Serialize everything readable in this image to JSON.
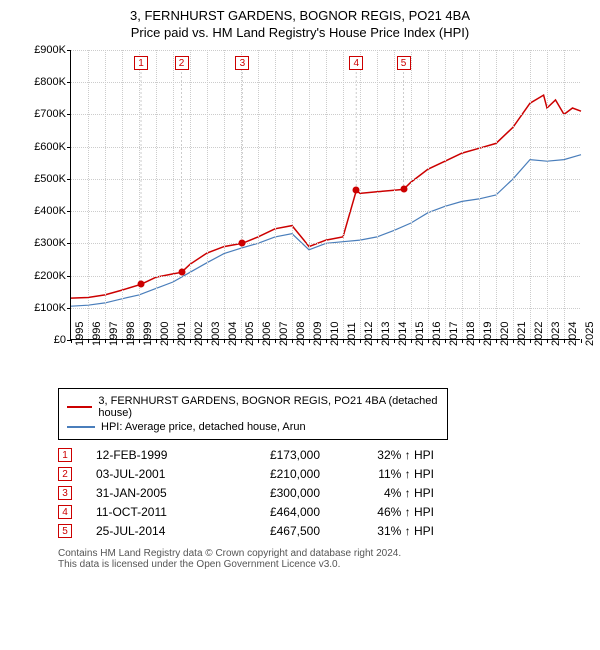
{
  "title": "3, FERNHURST GARDENS, BOGNOR REGIS, PO21 4BA",
  "subtitle": "Price paid vs. HM Land Registry's House Price Index (HPI)",
  "chart": {
    "type": "line",
    "background_color": "#ffffff",
    "grid_color": "#cccccc",
    "axis_color": "#000000",
    "text_color": "#000000",
    "label_fontsize": 11,
    "title_fontsize": 13,
    "y": {
      "min": 0,
      "max": 900000,
      "step": 100000,
      "labels": [
        "£0",
        "£100K",
        "£200K",
        "£300K",
        "£400K",
        "£500K",
        "£600K",
        "£700K",
        "£800K",
        "£900K"
      ]
    },
    "x": {
      "min": 1995,
      "max": 2025,
      "step": 1,
      "labels": [
        "1995",
        "1996",
        "1997",
        "1998",
        "1999",
        "2000",
        "2001",
        "2002",
        "2003",
        "2004",
        "2005",
        "2006",
        "2007",
        "2008",
        "2009",
        "2010",
        "2011",
        "2012",
        "2013",
        "2014",
        "2015",
        "2016",
        "2017",
        "2018",
        "2019",
        "2020",
        "2021",
        "2022",
        "2023",
        "2024",
        "2025"
      ]
    },
    "series_red": {
      "name": "3, FERNHURST GARDENS, BOGNOR REGIS, PO21 4BA (detached house)",
      "color": "#cc0000",
      "line_width": 1.5,
      "points": [
        [
          1995,
          130000
        ],
        [
          1996,
          132000
        ],
        [
          1997,
          140000
        ],
        [
          1998,
          155000
        ],
        [
          1999.12,
          173000
        ],
        [
          2000,
          195000
        ],
        [
          2001,
          205000
        ],
        [
          2001.5,
          210000
        ],
        [
          2002,
          235000
        ],
        [
          2003,
          270000
        ],
        [
          2004,
          290000
        ],
        [
          2005.08,
          300000
        ],
        [
          2006,
          320000
        ],
        [
          2007,
          345000
        ],
        [
          2008,
          355000
        ],
        [
          2008.7,
          310000
        ],
        [
          2009,
          290000
        ],
        [
          2010,
          310000
        ],
        [
          2011,
          320000
        ],
        [
          2011.78,
          464000
        ],
        [
          2012,
          455000
        ],
        [
          2013,
          460000
        ],
        [
          2014,
          465000
        ],
        [
          2014.56,
          467500
        ],
        [
          2015,
          490000
        ],
        [
          2016,
          530000
        ],
        [
          2017,
          555000
        ],
        [
          2018,
          580000
        ],
        [
          2019,
          595000
        ],
        [
          2020,
          610000
        ],
        [
          2021,
          660000
        ],
        [
          2022,
          735000
        ],
        [
          2022.8,
          760000
        ],
        [
          2023,
          720000
        ],
        [
          2023.5,
          745000
        ],
        [
          2024,
          700000
        ],
        [
          2024.5,
          720000
        ],
        [
          2025,
          710000
        ]
      ]
    },
    "series_blue": {
      "name": "HPI: Average price, detached house, Arun",
      "color": "#4a7ebb",
      "line_width": 1.2,
      "points": [
        [
          1995,
          105000
        ],
        [
          1996,
          108000
        ],
        [
          1997,
          115000
        ],
        [
          1998,
          128000
        ],
        [
          1999,
          140000
        ],
        [
          2000,
          160000
        ],
        [
          2001,
          180000
        ],
        [
          2002,
          210000
        ],
        [
          2003,
          240000
        ],
        [
          2004,
          268000
        ],
        [
          2005,
          285000
        ],
        [
          2006,
          300000
        ],
        [
          2007,
          320000
        ],
        [
          2008,
          330000
        ],
        [
          2009,
          280000
        ],
        [
          2010,
          300000
        ],
        [
          2011,
          305000
        ],
        [
          2012,
          310000
        ],
        [
          2013,
          320000
        ],
        [
          2014,
          340000
        ],
        [
          2015,
          363000
        ],
        [
          2016,
          395000
        ],
        [
          2017,
          415000
        ],
        [
          2018,
          430000
        ],
        [
          2019,
          438000
        ],
        [
          2020,
          450000
        ],
        [
          2021,
          500000
        ],
        [
          2022,
          560000
        ],
        [
          2023,
          555000
        ],
        [
          2024,
          560000
        ],
        [
          2025,
          575000
        ]
      ]
    },
    "sale_markers": [
      {
        "n": "1",
        "year": 1999.12,
        "price": 173000
      },
      {
        "n": "2",
        "year": 2001.5,
        "price": 210000
      },
      {
        "n": "3",
        "year": 2005.08,
        "price": 300000
      },
      {
        "n": "4",
        "year": 2011.78,
        "price": 464000
      },
      {
        "n": "5",
        "year": 2014.56,
        "price": 467500
      }
    ],
    "marker_box_color": "#cc0000",
    "marker_box_bg": "#ffffff"
  },
  "legend": {
    "items": [
      {
        "color": "#cc0000",
        "label": "3, FERNHURST GARDENS, BOGNOR REGIS, PO21 4BA (detached house)"
      },
      {
        "color": "#4a7ebb",
        "label": "HPI: Average price, detached house, Arun"
      }
    ]
  },
  "sales": [
    {
      "n": "1",
      "date": "12-FEB-1999",
      "price": "£173,000",
      "diff": "32% ↑ HPI"
    },
    {
      "n": "2",
      "date": "03-JUL-2001",
      "price": "£210,000",
      "diff": "11% ↑ HPI"
    },
    {
      "n": "3",
      "date": "31-JAN-2005",
      "price": "£300,000",
      "diff": "4% ↑ HPI"
    },
    {
      "n": "4",
      "date": "11-OCT-2011",
      "price": "£464,000",
      "diff": "46% ↑ HPI"
    },
    {
      "n": "5",
      "date": "25-JUL-2014",
      "price": "£467,500",
      "diff": "31% ↑ HPI"
    }
  ],
  "footer": {
    "line1": "Contains HM Land Registry data © Crown copyright and database right 2024.",
    "line2": "This data is licensed under the Open Government Licence v3.0."
  }
}
